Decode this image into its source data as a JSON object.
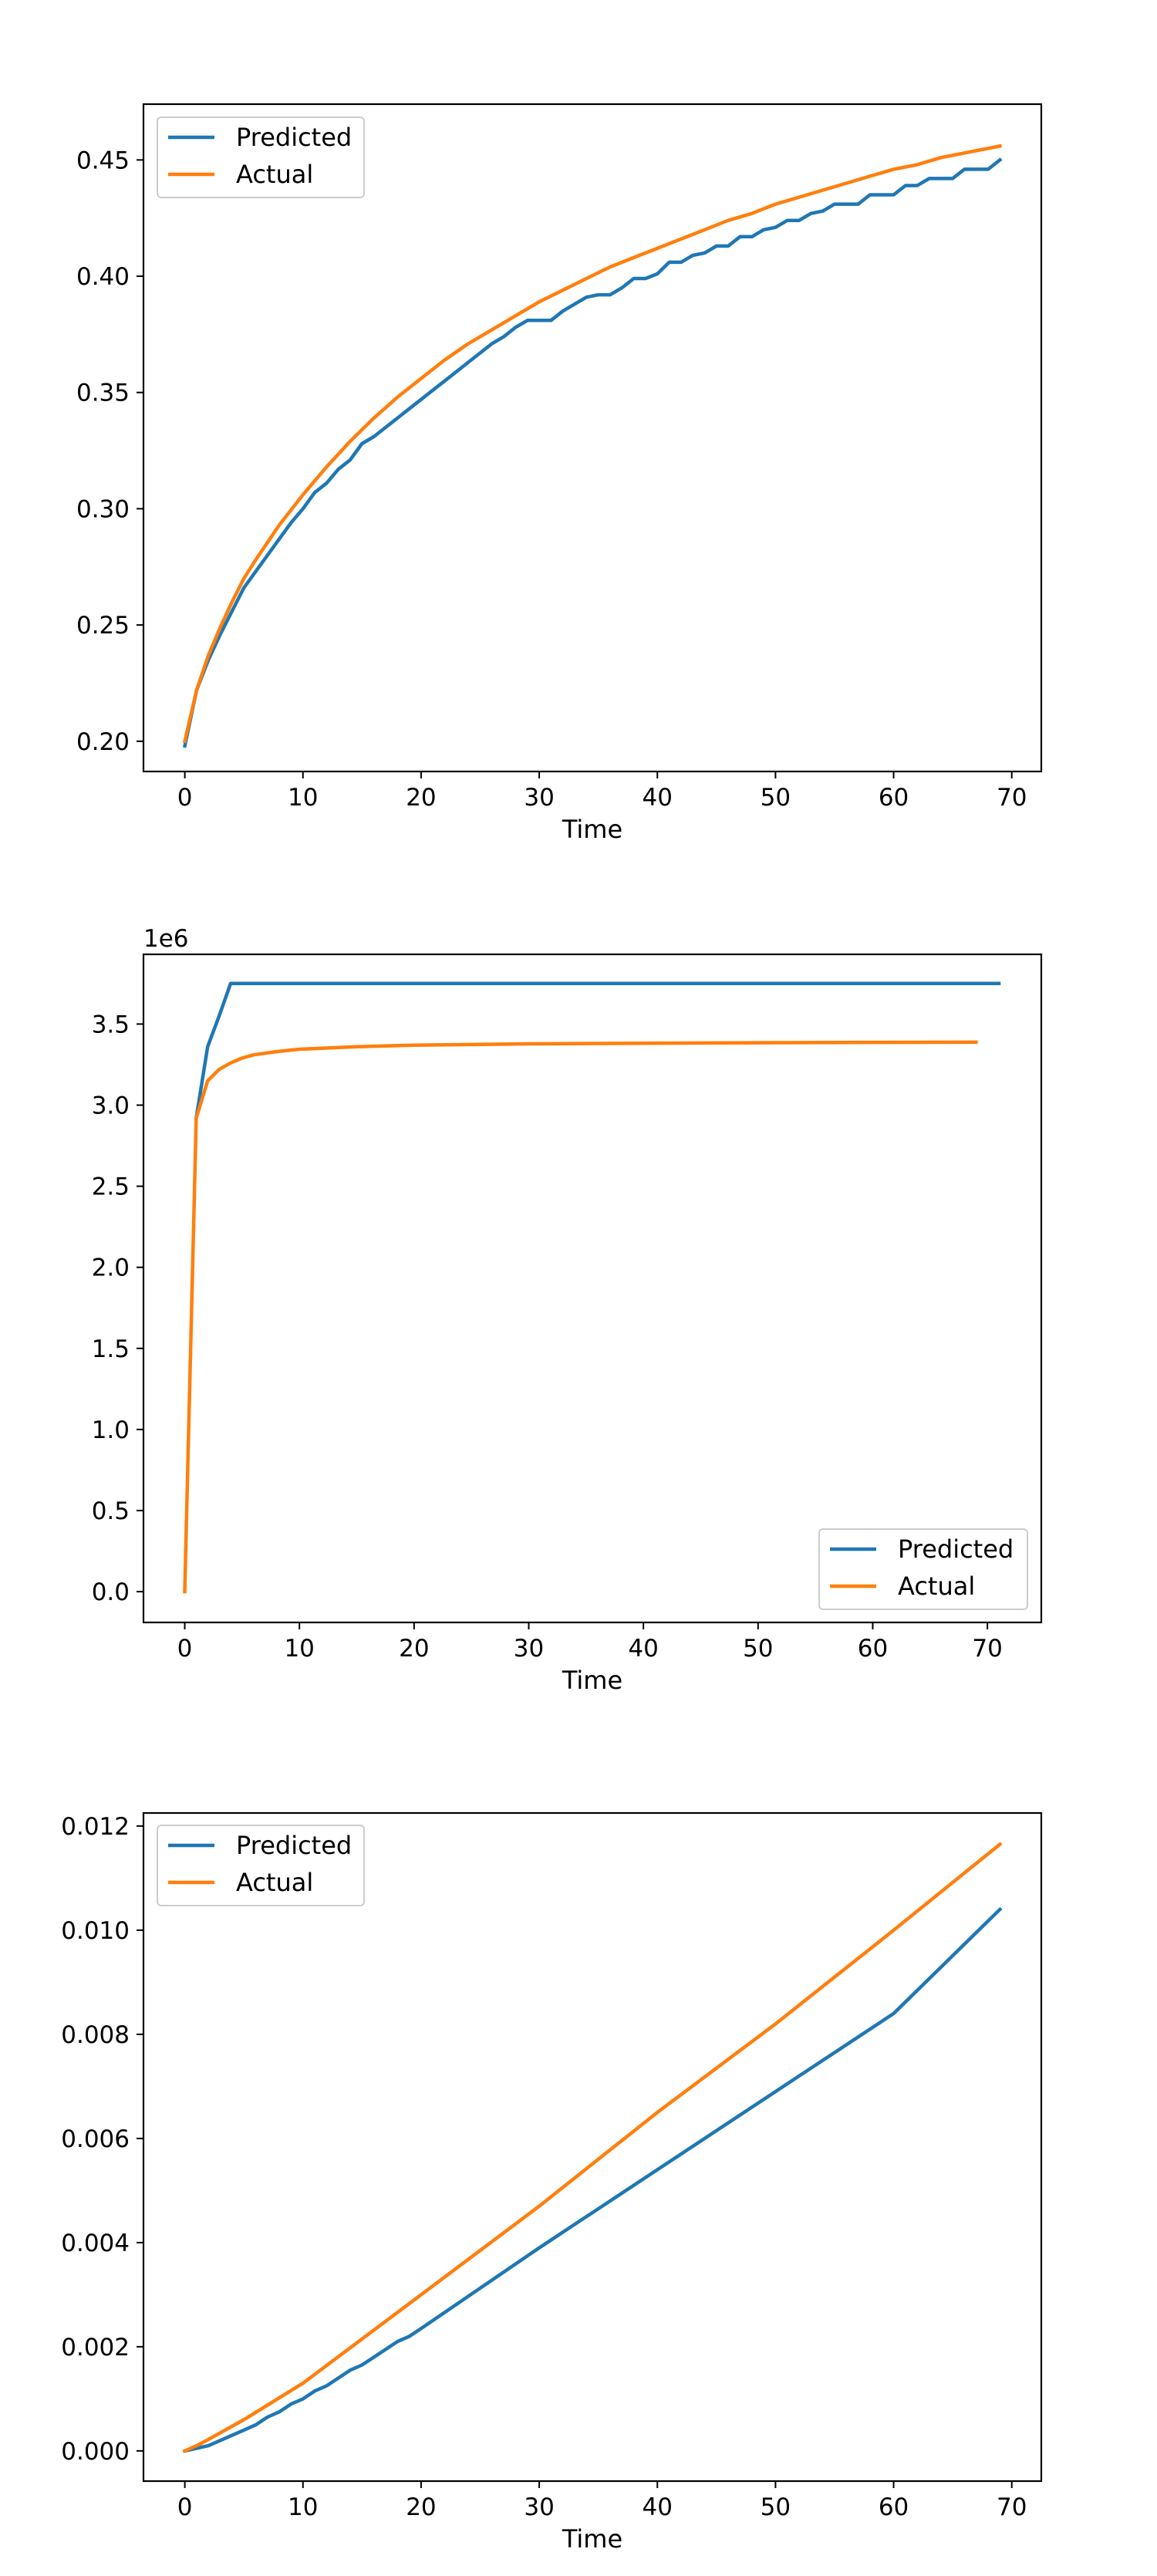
{
  "colors": {
    "predicted": "#1f77b4",
    "actual": "#ff7f0e"
  },
  "chart_data": [
    {
      "type": "line",
      "xlabel": "Time",
      "ylabel": "",
      "xlim": [
        -3.5,
        72.5
      ],
      "ylim": [
        0.187,
        0.474
      ],
      "xticks": [
        0,
        10,
        20,
        30,
        40,
        50,
        60,
        70
      ],
      "xtick_labels": [
        "0",
        "10",
        "20",
        "30",
        "40",
        "50",
        "60",
        "70"
      ],
      "yticks": [
        0.2,
        0.25,
        0.3,
        0.35,
        0.4,
        0.45
      ],
      "ytick_labels": [
        "0.20",
        "0.25",
        "0.30",
        "0.35",
        "0.40",
        "0.45"
      ],
      "offset_text": "",
      "legend": {
        "location": "upper left"
      },
      "series": [
        {
          "name": "Predicted",
          "color": "#1f77b4",
          "x": [
            0,
            1,
            2,
            3,
            4,
            5,
            6,
            7,
            8,
            9,
            10,
            11,
            12,
            13,
            14,
            15,
            16,
            17,
            18,
            19,
            20,
            21,
            22,
            23,
            24,
            25,
            26,
            27,
            28,
            29,
            30,
            31,
            32,
            33,
            34,
            35,
            36,
            37,
            38,
            39,
            40,
            41,
            42,
            43,
            44,
            45,
            46,
            47,
            48,
            49,
            50,
            51,
            52,
            53,
            54,
            55,
            56,
            57,
            58,
            59,
            60,
            61,
            62,
            63,
            64,
            65,
            66,
            67,
            68,
            69
          ],
          "y": [
            0.198,
            0.222,
            0.235,
            0.246,
            0.256,
            0.266,
            0.273,
            0.28,
            0.287,
            0.294,
            0.3,
            0.307,
            0.311,
            0.317,
            0.321,
            0.328,
            0.331,
            0.335,
            0.339,
            0.343,
            0.347,
            0.351,
            0.355,
            0.359,
            0.363,
            0.367,
            0.371,
            0.374,
            0.378,
            0.381,
            0.381,
            0.381,
            0.385,
            0.388,
            0.391,
            0.392,
            0.392,
            0.395,
            0.399,
            0.399,
            0.401,
            0.406,
            0.406,
            0.409,
            0.41,
            0.413,
            0.413,
            0.417,
            0.417,
            0.42,
            0.421,
            0.424,
            0.424,
            0.427,
            0.428,
            0.431,
            0.431,
            0.431,
            0.435,
            0.435,
            0.435,
            0.439,
            0.439,
            0.442,
            0.442,
            0.442,
            0.446,
            0.446,
            0.446,
            0.45
          ]
        },
        {
          "name": "Actual",
          "color": "#ff7f0e",
          "x": [
            0,
            1,
            2,
            3,
            4,
            5,
            6,
            8,
            10,
            12,
            14,
            16,
            18,
            20,
            22,
            24,
            26,
            28,
            30,
            32,
            34,
            36,
            38,
            40,
            42,
            44,
            46,
            48,
            50,
            52,
            54,
            56,
            58,
            60,
            62,
            64,
            66,
            68,
            69
          ],
          "y": [
            0.2,
            0.222,
            0.237,
            0.249,
            0.26,
            0.27,
            0.278,
            0.293,
            0.306,
            0.318,
            0.329,
            0.339,
            0.348,
            0.356,
            0.364,
            0.371,
            0.377,
            0.383,
            0.389,
            0.394,
            0.399,
            0.404,
            0.408,
            0.412,
            0.416,
            0.42,
            0.424,
            0.427,
            0.431,
            0.434,
            0.437,
            0.44,
            0.443,
            0.446,
            0.448,
            0.451,
            0.453,
            0.455,
            0.456
          ]
        }
      ]
    },
    {
      "type": "line",
      "xlabel": "Time",
      "ylabel": "",
      "xlim": [
        -3.6,
        74.7
      ],
      "ylim": [
        -0.19,
        3.93
      ],
      "xticks": [
        0,
        10,
        20,
        30,
        40,
        50,
        60,
        70
      ],
      "xtick_labels": [
        "0",
        "10",
        "20",
        "30",
        "40",
        "50",
        "60",
        "70"
      ],
      "yticks": [
        0.0,
        0.5,
        1.0,
        1.5,
        2.0,
        2.5,
        3.0,
        3.5
      ],
      "ytick_labels": [
        "0.0",
        "0.5",
        "1.0",
        "1.5",
        "2.0",
        "2.5",
        "3.0",
        "3.5"
      ],
      "offset_text": "1e6",
      "legend": {
        "location": "lower right"
      },
      "series": [
        {
          "name": "Predicted",
          "color": "#1f77b4",
          "x": [
            1,
            2,
            3,
            4,
            71
          ],
          "y": [
            2.92,
            3.36,
            3.55,
            3.75,
            3.75
          ]
        },
        {
          "name": "Actual",
          "color": "#ff7f0e",
          "x": [
            0,
            1,
            2,
            3,
            4,
            5,
            6,
            8,
            10,
            15,
            20,
            30,
            40,
            50,
            60,
            69
          ],
          "y": [
            0.0,
            2.92,
            3.15,
            3.22,
            3.26,
            3.29,
            3.31,
            3.33,
            3.345,
            3.36,
            3.37,
            3.378,
            3.382,
            3.385,
            3.387,
            3.388
          ]
        }
      ]
    },
    {
      "type": "line",
      "xlabel": "Time",
      "ylabel": "",
      "xlim": [
        -3.5,
        72.5
      ],
      "ylim": [
        -0.00058,
        0.01225
      ],
      "xticks": [
        0,
        10,
        20,
        30,
        40,
        50,
        60,
        70
      ],
      "xtick_labels": [
        "0",
        "10",
        "20",
        "30",
        "40",
        "50",
        "60",
        "70"
      ],
      "yticks": [
        0.0,
        0.002,
        0.004,
        0.006,
        0.008,
        0.01,
        0.012
      ],
      "ytick_labels": [
        "0.000",
        "0.002",
        "0.004",
        "0.006",
        "0.008",
        "0.010",
        "0.012"
      ],
      "offset_text": "",
      "legend": {
        "location": "upper left"
      },
      "series": [
        {
          "name": "Predicted",
          "color": "#1f77b4",
          "x": [
            0,
            2,
            4,
            5,
            6,
            7,
            8,
            9,
            10,
            11,
            12,
            13,
            14,
            15,
            16,
            17,
            18,
            19,
            20,
            30,
            40,
            50,
            60,
            69
          ],
          "y": [
            0.0,
            0.0001,
            0.0003,
            0.0004,
            0.0005,
            0.00065,
            0.00075,
            0.0009,
            0.001,
            0.00115,
            0.00125,
            0.0014,
            0.00155,
            0.00165,
            0.0018,
            0.00195,
            0.0021,
            0.0022,
            0.00235,
            0.0039,
            0.0054,
            0.0069,
            0.0084,
            0.0104
          ]
        },
        {
          "name": "Actual",
          "color": "#ff7f0e",
          "x": [
            0,
            1,
            2,
            5,
            10,
            20,
            30,
            40,
            50,
            60,
            69
          ],
          "y": [
            0.0,
            0.0001,
            0.00022,
            0.0006,
            0.0013,
            0.003,
            0.0047,
            0.0065,
            0.0082,
            0.01,
            0.01165
          ]
        }
      ]
    }
  ]
}
